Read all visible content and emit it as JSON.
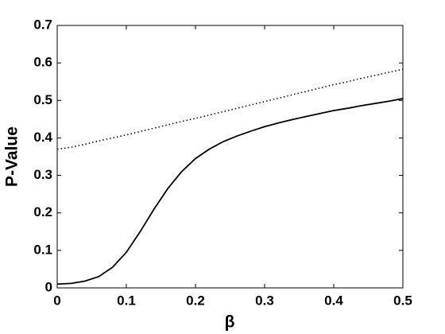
{
  "chart_data": {
    "type": "line",
    "xlabel": "β",
    "ylabel": "P-Value",
    "x": [
      0,
      0.02,
      0.04,
      0.06,
      0.08,
      0.1,
      0.12,
      0.14,
      0.16,
      0.18,
      0.2,
      0.22,
      0.24,
      0.26,
      0.28,
      0.3,
      0.32,
      0.34,
      0.36,
      0.38,
      0.4,
      0.42,
      0.44,
      0.46,
      0.48,
      0.5
    ],
    "series": [
      {
        "color": "#000000",
        "dash": "solid",
        "values": [
          0.01,
          0.012,
          0.018,
          0.03,
          0.055,
          0.095,
          0.15,
          0.21,
          0.265,
          0.31,
          0.345,
          0.37,
          0.39,
          0.405,
          0.418,
          0.43,
          0.44,
          0.449,
          0.457,
          0.465,
          0.473,
          0.479,
          0.486,
          0.492,
          0.498,
          0.505
        ]
      },
      {
        "color": "#000000",
        "dash": "dotted",
        "values": [
          0.37,
          0.375,
          0.383,
          0.392,
          0.4,
          0.408,
          0.417,
          0.426,
          0.435,
          0.444,
          0.452,
          0.461,
          0.47,
          0.479,
          0.488,
          0.497,
          0.506,
          0.515,
          0.524,
          0.533,
          0.542,
          0.55,
          0.559,
          0.567,
          0.575,
          0.583
        ]
      }
    ],
    "xlim": [
      0,
      0.5
    ],
    "xticks": [
      0,
      0.1,
      0.2,
      0.3,
      0.4,
      0.5
    ],
    "ylim": [
      0,
      0.7
    ],
    "yticks": [
      0,
      0.1,
      0.2,
      0.3,
      0.4,
      0.5,
      0.6,
      0.7
    ],
    "grid": false
  }
}
